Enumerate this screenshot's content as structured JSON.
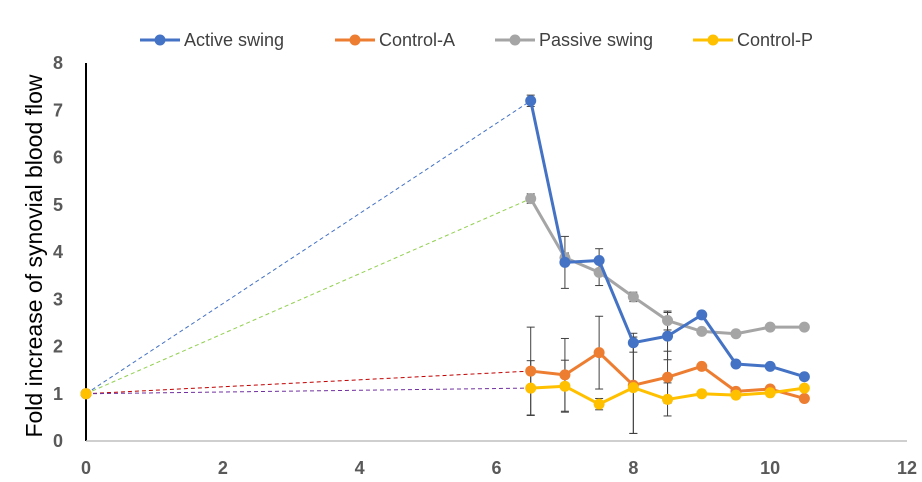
{
  "chart_data": {
    "type": "line",
    "title": "",
    "xlabel": "",
    "ylabel": "Fold increase of synovial blood flow",
    "xlim": [
      0,
      12
    ],
    "ylim": [
      0,
      8
    ],
    "xticks": [
      0,
      2,
      4,
      6,
      8,
      10,
      12
    ],
    "yticks": [
      0,
      1,
      2,
      3,
      4,
      5,
      6,
      7,
      8
    ],
    "grid": false,
    "legend_position": "top",
    "series": [
      {
        "name": "Active swing",
        "color": "#4472C4",
        "x": [
          6.5,
          7,
          7.5,
          8,
          8.5,
          9,
          9.5,
          10,
          10.5
        ],
        "y": [
          7.2,
          3.78,
          3.82,
          2.08,
          2.22,
          2.67,
          1.63,
          1.58,
          1.36
        ],
        "err": [
          0.12,
          0.55,
          0.25,
          0.2,
          0.5,
          0,
          0,
          0,
          0
        ],
        "baseline": {
          "x": 0,
          "y": 1,
          "color": "#4472C4"
        }
      },
      {
        "name": "Control-A",
        "color": "#ED7D31",
        "x": [
          6.5,
          7,
          7.5,
          8,
          8.5,
          9,
          9.5,
          10,
          10.5
        ],
        "y": [
          1.48,
          1.4,
          1.87,
          1.18,
          1.35,
          1.58,
          1.05,
          1.1,
          0.9
        ],
        "err": [
          0.93,
          0.77,
          0.77,
          1.02,
          0.55,
          0,
          0,
          0,
          0
        ],
        "baseline": {
          "x": 0,
          "y": 1,
          "color": "#C00000"
        }
      },
      {
        "name": "Passive swing",
        "color": "#A5A5A5",
        "x": [
          6.5,
          7,
          7.5,
          8,
          8.5,
          9,
          9.5,
          10,
          10.5
        ],
        "y": [
          5.13,
          3.88,
          3.57,
          3.05,
          2.55,
          2.32,
          2.27,
          2.41,
          2.41
        ],
        "err": [
          0.1,
          0.1,
          0.28,
          0.1,
          0.2,
          0,
          0,
          0,
          0
        ],
        "baseline": {
          "x": 0,
          "y": 1,
          "color": "#92D050"
        }
      },
      {
        "name": "Control-P",
        "color": "#FFC000",
        "x": [
          6.5,
          7,
          7.5,
          8,
          8.5,
          9,
          9.5,
          10,
          10.5
        ],
        "y": [
          1.12,
          1.16,
          0.78,
          1.13,
          0.88,
          1.0,
          0.97,
          1.02,
          1.12
        ],
        "err": [
          0.58,
          0.55,
          0.12,
          0.97,
          0.35,
          0,
          0,
          0,
          0
        ],
        "baseline": {
          "x": 0,
          "y": 1,
          "color": "#7030A0"
        }
      }
    ]
  }
}
